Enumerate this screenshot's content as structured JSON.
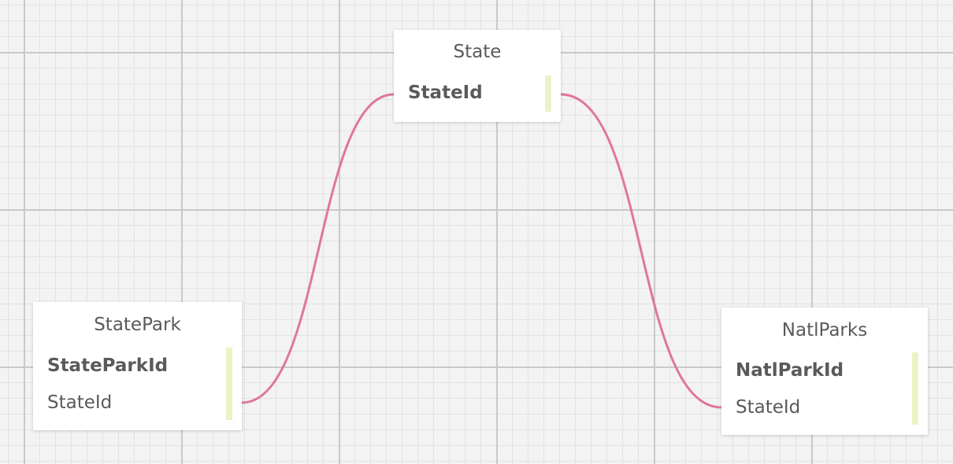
{
  "diagram": {
    "link_color": "#e07797",
    "tables": [
      {
        "id": "state",
        "title": "State",
        "fields": [
          {
            "name": "StateId",
            "key": "primary"
          }
        ]
      },
      {
        "id": "statepark",
        "title": "StatePark",
        "fields": [
          {
            "name": "StateParkId",
            "key": "primary"
          },
          {
            "name": "StateId",
            "key": "foreign"
          }
        ]
      },
      {
        "id": "natlparks",
        "title": "NatlParks",
        "fields": [
          {
            "name": "NatlParkId",
            "key": "primary"
          },
          {
            "name": "StateId",
            "key": "foreign"
          }
        ]
      }
    ],
    "relationships": [
      {
        "from": "StatePark.StateId",
        "to": "State.StateId"
      },
      {
        "from": "NatlParks.StateId",
        "to": "State.StateId"
      }
    ]
  }
}
